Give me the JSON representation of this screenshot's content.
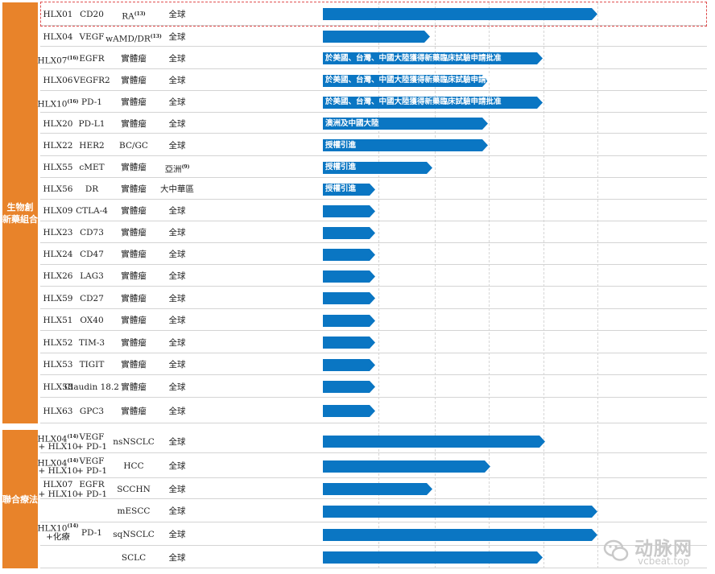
{
  "groups": [
    {
      "label": "生物創\n新藥組合",
      "rows": 19
    },
    {
      "label": "聯合療法",
      "rows": 6
    }
  ],
  "chart_data": {
    "type": "bar",
    "orientation": "horizontal",
    "title": "",
    "xlabel": "",
    "ylabel": "",
    "grid": true,
    "legend": "none",
    "value_scale": "progress fraction of the bar area (stage columns are not labeled in the image)",
    "highlighted_rows": [
      0
    ],
    "rows": [
      {
        "product": "HLX01",
        "product_sup": "",
        "target": "CD20",
        "indication": "RA",
        "indication_sup": "(13)",
        "region": "全球",
        "region_sup": "",
        "progress": 1.0,
        "bar_text": ""
      },
      {
        "product": "HLX04",
        "product_sup": "",
        "target": "VEGF",
        "indication": "wAMD/DR",
        "indication_sup": "(13)",
        "region": "全球",
        "region_sup": "",
        "progress": 0.39,
        "bar_text": ""
      },
      {
        "product": "HLX07",
        "product_sup": "(16)",
        "target": "EGFR",
        "indication": "實體瘤",
        "indication_sup": "",
        "region": "全球",
        "region_sup": "",
        "progress": 0.8,
        "bar_text": "於美國、台灣、中國大陸獲得新藥臨床試驗申請批准"
      },
      {
        "product": "HLX06",
        "product_sup": "",
        "target": "VEGFR2",
        "indication": "實體瘤",
        "indication_sup": "",
        "region": "全球",
        "region_sup": "",
        "progress": 0.6,
        "bar_text": "於美國、台灣、中國大陸獲得新藥臨床試驗申請批准"
      },
      {
        "product": "HLX10",
        "product_sup": "(16)",
        "target": "PD-1",
        "indication": "實體瘤",
        "indication_sup": "",
        "region": "全球",
        "region_sup": "",
        "progress": 0.8,
        "bar_text": "於美國、台灣、中國大陸獲得新藥臨床試驗申請批准"
      },
      {
        "product": "HLX20",
        "product_sup": "",
        "target": "PD-L1",
        "indication": "實體瘤",
        "indication_sup": "",
        "region": "全球",
        "region_sup": "",
        "progress": 0.6,
        "bar_text": "澳洲及中國大陸"
      },
      {
        "product": "HLX22",
        "product_sup": "",
        "target": "HER2",
        "indication": "BC/GC",
        "indication_sup": "",
        "region": "全球",
        "region_sup": "",
        "progress": 0.6,
        "bar_text": "授權引進"
      },
      {
        "product": "HLX55",
        "product_sup": "",
        "target": "cMET",
        "indication": "實體瘤",
        "indication_sup": "",
        "region": "亞洲",
        "region_sup": "(9)",
        "progress": 0.4,
        "bar_text": "授權引進"
      },
      {
        "product": "HLX56",
        "product_sup": "",
        "target": "DR",
        "indication": "實體瘤",
        "indication_sup": "",
        "region": "大中華區",
        "region_sup": "",
        "progress": 0.19,
        "bar_text": "授權引進"
      },
      {
        "product": "HLX09",
        "product_sup": "",
        "target": "CTLA-4",
        "indication": "實體瘤",
        "indication_sup": "",
        "region": "全球",
        "region_sup": "",
        "progress": 0.19,
        "bar_text": ""
      },
      {
        "product": "HLX23",
        "product_sup": "",
        "target": "CD73",
        "indication": "實體瘤",
        "indication_sup": "",
        "region": "全球",
        "region_sup": "",
        "progress": 0.19,
        "bar_text": ""
      },
      {
        "product": "HLX24",
        "product_sup": "",
        "target": "CD47",
        "indication": "實體瘤",
        "indication_sup": "",
        "region": "全球",
        "region_sup": "",
        "progress": 0.19,
        "bar_text": ""
      },
      {
        "product": "HLX26",
        "product_sup": "",
        "target": "LAG3",
        "indication": "實體瘤",
        "indication_sup": "",
        "region": "全球",
        "region_sup": "",
        "progress": 0.19,
        "bar_text": ""
      },
      {
        "product": "HLX59",
        "product_sup": "",
        "target": "CD27",
        "indication": "實體瘤",
        "indication_sup": "",
        "region": "全球",
        "region_sup": "",
        "progress": 0.19,
        "bar_text": ""
      },
      {
        "product": "HLX51",
        "product_sup": "",
        "target": "OX40",
        "indication": "實體瘤",
        "indication_sup": "",
        "region": "全球",
        "region_sup": "",
        "progress": 0.19,
        "bar_text": ""
      },
      {
        "product": "HLX52",
        "product_sup": "",
        "target": "TIM-3",
        "indication": "實體瘤",
        "indication_sup": "",
        "region": "全球",
        "region_sup": "",
        "progress": 0.19,
        "bar_text": ""
      },
      {
        "product": "HLX53",
        "product_sup": "",
        "target": "TIGIT",
        "indication": "實體瘤",
        "indication_sup": "",
        "region": "全球",
        "region_sup": "",
        "progress": 0.19,
        "bar_text": ""
      },
      {
        "product": "HLX58",
        "product_sup": "",
        "target": "Claudin 18.2",
        "indication": "實體瘤",
        "indication_sup": "",
        "region": "全球",
        "region_sup": "",
        "progress": 0.19,
        "bar_text": ""
      },
      {
        "product": "HLX63",
        "product_sup": "",
        "target": "GPC3",
        "indication": "實體瘤",
        "indication_sup": "",
        "region": "全球",
        "region_sup": "",
        "progress": 0.19,
        "bar_text": ""
      },
      {
        "product": "HLX04",
        "product_sup": "(14)",
        "product2": "+ HLX10",
        "target": "VEGF",
        "target2": "+ PD-1",
        "indication": "nsNSCLC",
        "indication_sup": "",
        "region": "全球",
        "region_sup": "",
        "progress": 0.81,
        "bar_text": ""
      },
      {
        "product": "HLX04",
        "product_sup": "(14)",
        "product2": "+ HLX10",
        "target": "VEGF",
        "target2": "+ PD-1",
        "indication": "HCC",
        "indication_sup": "",
        "region": "全球",
        "region_sup": "",
        "progress": 0.61,
        "bar_text": ""
      },
      {
        "product": "HLX07",
        "product_sup": "",
        "product2": "+ HLX10",
        "target": "EGFR",
        "target2": "+ PD-1",
        "indication": "SCCHN",
        "indication_sup": "",
        "region": "全球",
        "region_sup": "",
        "progress": 0.4,
        "bar_text": ""
      },
      {
        "product": "",
        "product_sup": "",
        "target": "",
        "indication": "mESCC",
        "indication_sup": "",
        "region": "全球",
        "region_sup": "",
        "progress": 1.0,
        "bar_text": ""
      },
      {
        "product": "",
        "product_sup": "",
        "target": "",
        "indication": "sqNSCLC",
        "indication_sup": "",
        "region": "全球",
        "region_sup": "",
        "progress": 1.0,
        "bar_text": ""
      },
      {
        "product": "",
        "product_sup": "",
        "target": "",
        "indication": "SCLC",
        "indication_sup": "",
        "region": "全球",
        "region_sup": "",
        "progress": 0.8,
        "bar_text": ""
      }
    ],
    "merged_group": {
      "product": "HLX10",
      "product_sup": "(14)",
      "product2": "+化療",
      "target": "PD-1"
    }
  },
  "colors": {
    "bar": "#0a76c3",
    "band": "#e8832a",
    "highlight": "#e05050"
  },
  "watermark": {
    "cn": "动脉网",
    "en": "vcbeat.top",
    "icon": "wechat-icon"
  }
}
